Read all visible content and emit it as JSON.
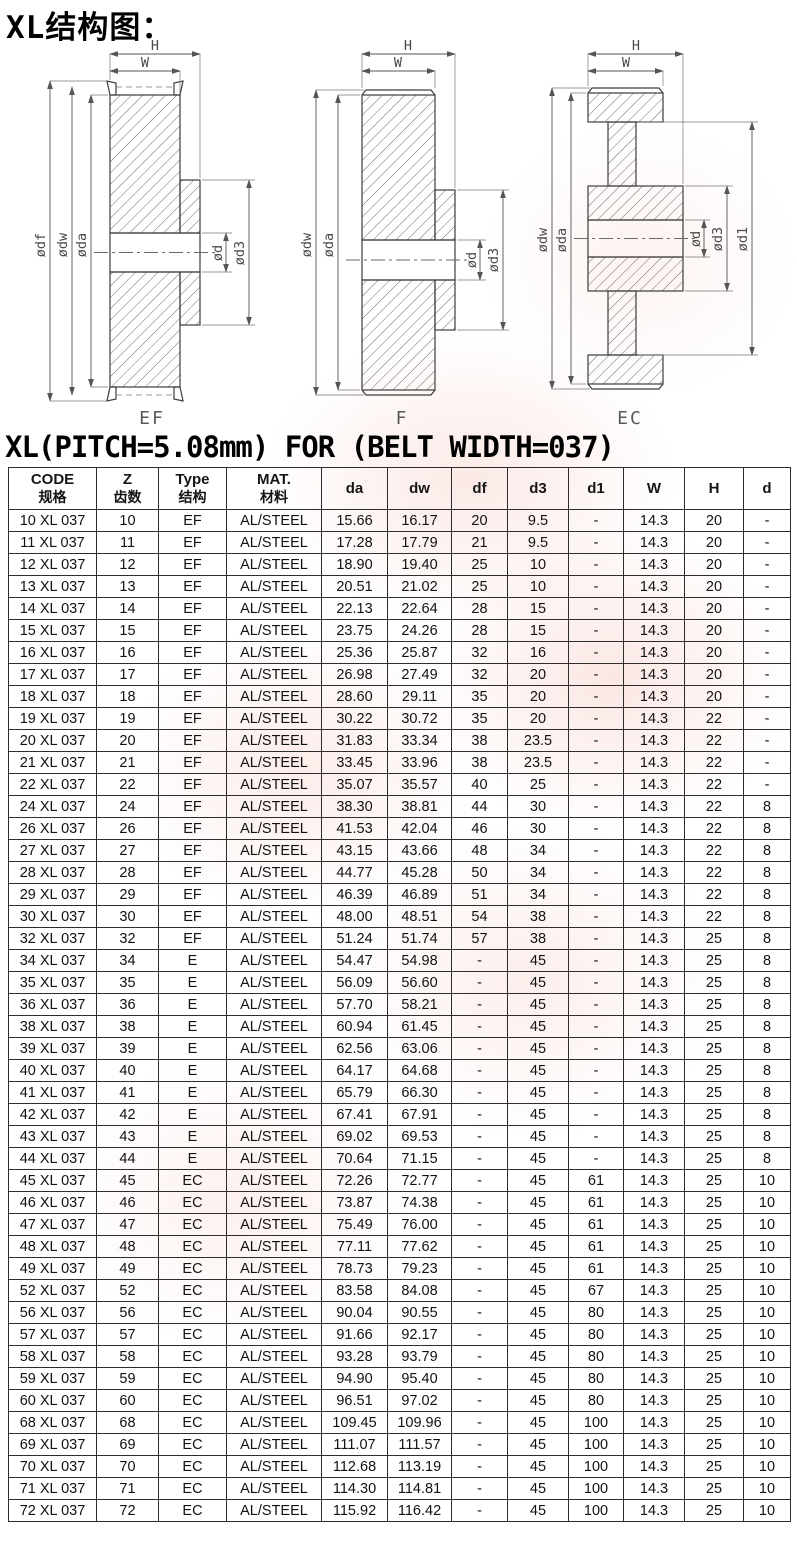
{
  "page": {
    "title": "XL结构图："
  },
  "subtitle": "XL(PITCH=5.08mm) FOR (BELT WIDTH=037)",
  "diagrams": [
    {
      "label": "EF",
      "dim_h": "H",
      "dim_w": "W",
      "left_dims": [
        "ødf",
        "ødw",
        "øda"
      ],
      "right_dims": [
        "ød",
        "ød3"
      ]
    },
    {
      "label": "F",
      "dim_h": "H",
      "dim_w": "W",
      "left_dims": [
        "ødw",
        "øda"
      ],
      "right_dims": [
        "ød",
        "ød3"
      ]
    },
    {
      "label": "EC",
      "dim_h": "H",
      "dim_w": "W",
      "left_dims": [
        "ødw",
        "øda"
      ],
      "right_dims": [
        "ød",
        "ød3",
        "ød1"
      ]
    }
  ],
  "table": {
    "headers": [
      {
        "line1": "CODE",
        "line2": "规格"
      },
      {
        "line1": "Z",
        "line2": "齿数"
      },
      {
        "line1": "Type",
        "line2": "结构"
      },
      {
        "line1": "MAT.",
        "line2": "材料"
      },
      {
        "line1": "da",
        "line2": ""
      },
      {
        "line1": "dw",
        "line2": ""
      },
      {
        "line1": "df",
        "line2": ""
      },
      {
        "line1": "d3",
        "line2": ""
      },
      {
        "line1": "d1",
        "line2": ""
      },
      {
        "line1": "W",
        "line2": ""
      },
      {
        "line1": "H",
        "line2": ""
      },
      {
        "line1": "d",
        "line2": ""
      }
    ],
    "rows": [
      [
        "10 XL 037",
        "10",
        "EF",
        "AL/STEEL",
        "15.66",
        "16.17",
        "20",
        "9.5",
        "-",
        "14.3",
        "20",
        "-"
      ],
      [
        "11 XL 037",
        "11",
        "EF",
        "AL/STEEL",
        "17.28",
        "17.79",
        "21",
        "9.5",
        "-",
        "14.3",
        "20",
        "-"
      ],
      [
        "12 XL 037",
        "12",
        "EF",
        "AL/STEEL",
        "18.90",
        "19.40",
        "25",
        "10",
        "-",
        "14.3",
        "20",
        "-"
      ],
      [
        "13 XL 037",
        "13",
        "EF",
        "AL/STEEL",
        "20.51",
        "21.02",
        "25",
        "10",
        "-",
        "14.3",
        "20",
        "-"
      ],
      [
        "14 XL 037",
        "14",
        "EF",
        "AL/STEEL",
        "22.13",
        "22.64",
        "28",
        "15",
        "-",
        "14.3",
        "20",
        "-"
      ],
      [
        "15 XL 037",
        "15",
        "EF",
        "AL/STEEL",
        "23.75",
        "24.26",
        "28",
        "15",
        "-",
        "14.3",
        "20",
        "-"
      ],
      [
        "16 XL 037",
        "16",
        "EF",
        "AL/STEEL",
        "25.36",
        "25.87",
        "32",
        "16",
        "-",
        "14.3",
        "20",
        "-"
      ],
      [
        "17 XL 037",
        "17",
        "EF",
        "AL/STEEL",
        "26.98",
        "27.49",
        "32",
        "20",
        "-",
        "14.3",
        "20",
        "-"
      ],
      [
        "18 XL 037",
        "18",
        "EF",
        "AL/STEEL",
        "28.60",
        "29.11",
        "35",
        "20",
        "-",
        "14.3",
        "20",
        "-"
      ],
      [
        "19 XL 037",
        "19",
        "EF",
        "AL/STEEL",
        "30.22",
        "30.72",
        "35",
        "20",
        "-",
        "14.3",
        "22",
        "-"
      ],
      [
        "20 XL 037",
        "20",
        "EF",
        "AL/STEEL",
        "31.83",
        "33.34",
        "38",
        "23.5",
        "-",
        "14.3",
        "22",
        "-"
      ],
      [
        "21 XL 037",
        "21",
        "EF",
        "AL/STEEL",
        "33.45",
        "33.96",
        "38",
        "23.5",
        "-",
        "14.3",
        "22",
        "-"
      ],
      [
        "22 XL 037",
        "22",
        "EF",
        "AL/STEEL",
        "35.07",
        "35.57",
        "40",
        "25",
        "-",
        "14.3",
        "22",
        "-"
      ],
      [
        "24 XL 037",
        "24",
        "EF",
        "AL/STEEL",
        "38.30",
        "38.81",
        "44",
        "30",
        "-",
        "14.3",
        "22",
        "8"
      ],
      [
        "26 XL 037",
        "26",
        "EF",
        "AL/STEEL",
        "41.53",
        "42.04",
        "46",
        "30",
        "-",
        "14.3",
        "22",
        "8"
      ],
      [
        "27 XL 037",
        "27",
        "EF",
        "AL/STEEL",
        "43.15",
        "43.66",
        "48",
        "34",
        "-",
        "14.3",
        "22",
        "8"
      ],
      [
        "28 XL 037",
        "28",
        "EF",
        "AL/STEEL",
        "44.77",
        "45.28",
        "50",
        "34",
        "-",
        "14.3",
        "22",
        "8"
      ],
      [
        "29 XL 037",
        "29",
        "EF",
        "AL/STEEL",
        "46.39",
        "46.89",
        "51",
        "34",
        "-",
        "14.3",
        "22",
        "8"
      ],
      [
        "30 XL 037",
        "30",
        "EF",
        "AL/STEEL",
        "48.00",
        "48.51",
        "54",
        "38",
        "-",
        "14.3",
        "22",
        "8"
      ],
      [
        "32 XL 037",
        "32",
        "EF",
        "AL/STEEL",
        "51.24",
        "51.74",
        "57",
        "38",
        "-",
        "14.3",
        "25",
        "8"
      ],
      [
        "34 XL 037",
        "34",
        "E",
        "AL/STEEL",
        "54.47",
        "54.98",
        "-",
        "45",
        "-",
        "14.3",
        "25",
        "8"
      ],
      [
        "35 XL 037",
        "35",
        "E",
        "AL/STEEL",
        "56.09",
        "56.60",
        "-",
        "45",
        "-",
        "14.3",
        "25",
        "8"
      ],
      [
        "36 XL 037",
        "36",
        "E",
        "AL/STEEL",
        "57.70",
        "58.21",
        "-",
        "45",
        "-",
        "14.3",
        "25",
        "8"
      ],
      [
        "38 XL 037",
        "38",
        "E",
        "AL/STEEL",
        "60.94",
        "61.45",
        "-",
        "45",
        "-",
        "14.3",
        "25",
        "8"
      ],
      [
        "39 XL 037",
        "39",
        "E",
        "AL/STEEL",
        "62.56",
        "63.06",
        "-",
        "45",
        "-",
        "14.3",
        "25",
        "8"
      ],
      [
        "40 XL 037",
        "40",
        "E",
        "AL/STEEL",
        "64.17",
        "64.68",
        "-",
        "45",
        "-",
        "14.3",
        "25",
        "8"
      ],
      [
        "41 XL 037",
        "41",
        "E",
        "AL/STEEL",
        "65.79",
        "66.30",
        "-",
        "45",
        "-",
        "14.3",
        "25",
        "8"
      ],
      [
        "42 XL 037",
        "42",
        "E",
        "AL/STEEL",
        "67.41",
        "67.91",
        "-",
        "45",
        "-",
        "14.3",
        "25",
        "8"
      ],
      [
        "43 XL 037",
        "43",
        "E",
        "AL/STEEL",
        "69.02",
        "69.53",
        "-",
        "45",
        "-",
        "14.3",
        "25",
        "8"
      ],
      [
        "44 XL 037",
        "44",
        "E",
        "AL/STEEL",
        "70.64",
        "71.15",
        "-",
        "45",
        "-",
        "14.3",
        "25",
        "8"
      ],
      [
        "45 XL 037",
        "45",
        "EC",
        "AL/STEEL",
        "72.26",
        "72.77",
        "-",
        "45",
        "61",
        "14.3",
        "25",
        "10"
      ],
      [
        "46 XL 037",
        "46",
        "EC",
        "AL/STEEL",
        "73.87",
        "74.38",
        "-",
        "45",
        "61",
        "14.3",
        "25",
        "10"
      ],
      [
        "47 XL 037",
        "47",
        "EC",
        "AL/STEEL",
        "75.49",
        "76.00",
        "-",
        "45",
        "61",
        "14.3",
        "25",
        "10"
      ],
      [
        "48 XL 037",
        "48",
        "EC",
        "AL/STEEL",
        "77.11",
        "77.62",
        "-",
        "45",
        "61",
        "14.3",
        "25",
        "10"
      ],
      [
        "49 XL 037",
        "49",
        "EC",
        "AL/STEEL",
        "78.73",
        "79.23",
        "-",
        "45",
        "61",
        "14.3",
        "25",
        "10"
      ],
      [
        "52 XL 037",
        "52",
        "EC",
        "AL/STEEL",
        "83.58",
        "84.08",
        "-",
        "45",
        "67",
        "14.3",
        "25",
        "10"
      ],
      [
        "56 XL 037",
        "56",
        "EC",
        "AL/STEEL",
        "90.04",
        "90.55",
        "-",
        "45",
        "80",
        "14.3",
        "25",
        "10"
      ],
      [
        "57 XL 037",
        "57",
        "EC",
        "AL/STEEL",
        "91.66",
        "92.17",
        "-",
        "45",
        "80",
        "14.3",
        "25",
        "10"
      ],
      [
        "58 XL 037",
        "58",
        "EC",
        "AL/STEEL",
        "93.28",
        "93.79",
        "-",
        "45",
        "80",
        "14.3",
        "25",
        "10"
      ],
      [
        "59 XL 037",
        "59",
        "EC",
        "AL/STEEL",
        "94.90",
        "95.40",
        "-",
        "45",
        "80",
        "14.3",
        "25",
        "10"
      ],
      [
        "60 XL 037",
        "60",
        "EC",
        "AL/STEEL",
        "96.51",
        "97.02",
        "-",
        "45",
        "80",
        "14.3",
        "25",
        "10"
      ],
      [
        "68 XL 037",
        "68",
        "EC",
        "AL/STEEL",
        "109.45",
        "109.96",
        "-",
        "45",
        "100",
        "14.3",
        "25",
        "10"
      ],
      [
        "69 XL 037",
        "69",
        "EC",
        "AL/STEEL",
        "111.07",
        "111.57",
        "-",
        "45",
        "100",
        "14.3",
        "25",
        "10"
      ],
      [
        "70 XL 037",
        "70",
        "EC",
        "AL/STEEL",
        "112.68",
        "113.19",
        "-",
        "45",
        "100",
        "14.3",
        "25",
        "10"
      ],
      [
        "71 XL 037",
        "71",
        "EC",
        "AL/STEEL",
        "114.30",
        "114.81",
        "-",
        "45",
        "100",
        "14.3",
        "25",
        "10"
      ],
      [
        "72 XL 037",
        "72",
        "EC",
        "AL/STEEL",
        "115.92",
        "116.42",
        "-",
        "45",
        "100",
        "14.3",
        "25",
        "10"
      ]
    ]
  },
  "colors": {
    "watermark": "#f6cfc8",
    "grid": "#2d2d2d",
    "drawing_line": "#3d3d3d"
  }
}
